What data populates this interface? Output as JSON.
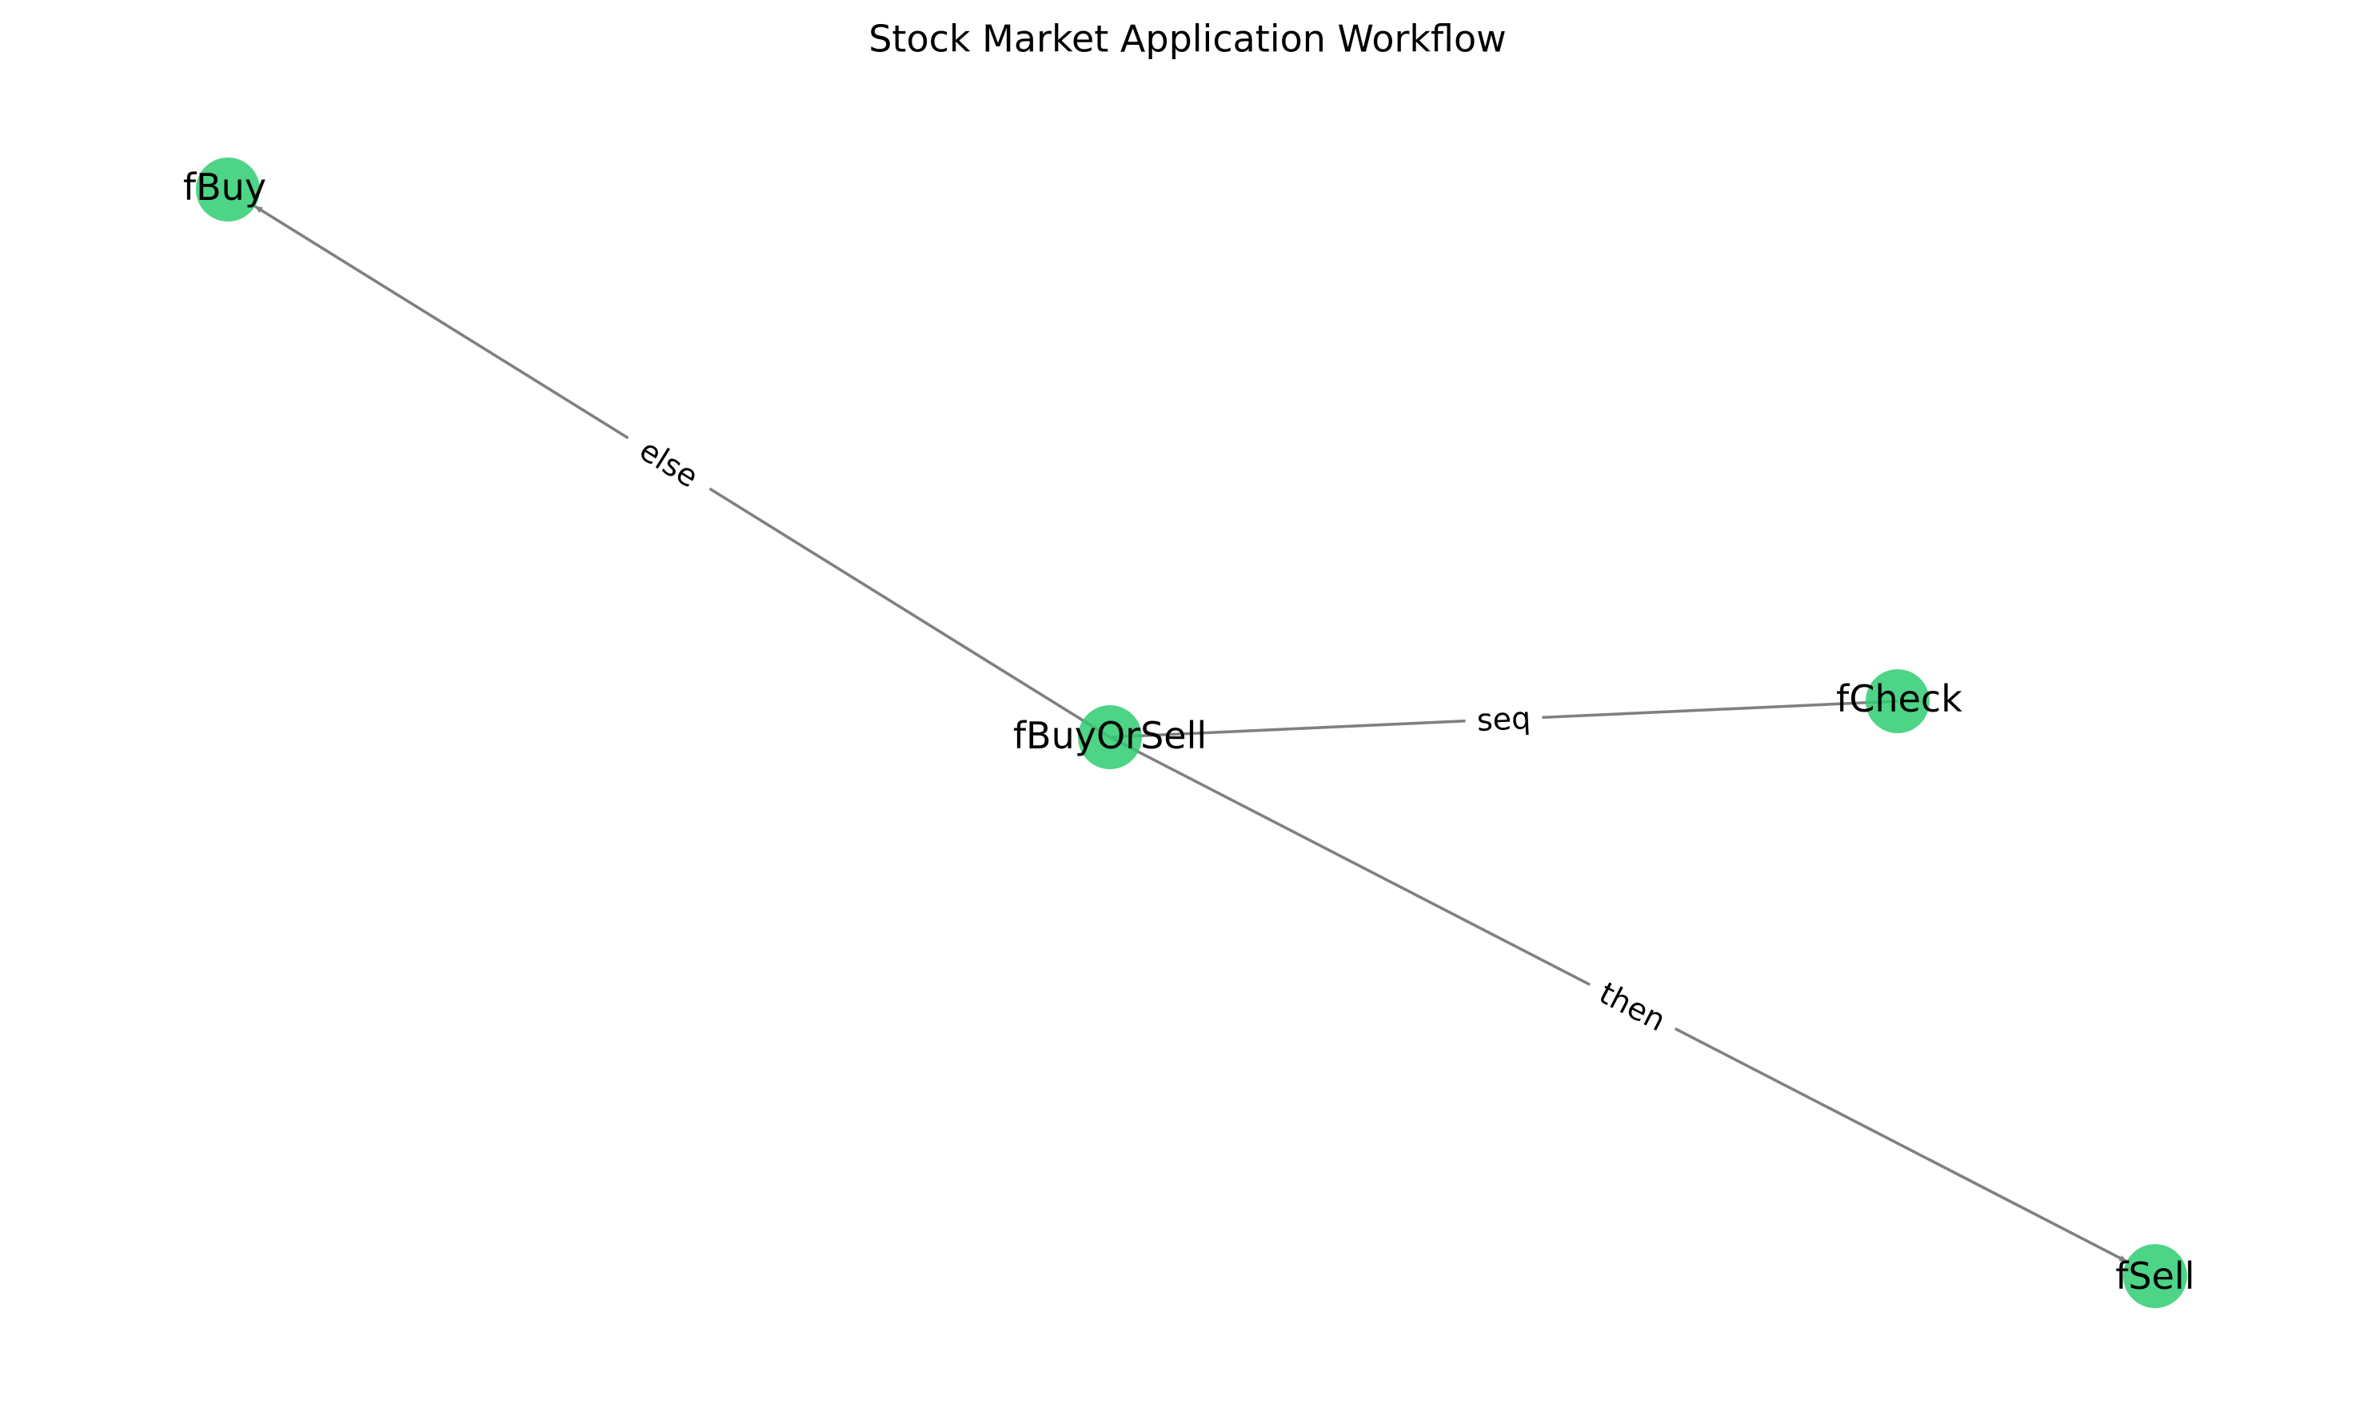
{
  "title": "Stock Market Application Workflow",
  "colors": {
    "node_fill": "#2ecc71",
    "edge_stroke": "#808080",
    "text": "#000000",
    "background": "#ffffff"
  },
  "nodes": [
    {
      "id": "fBuy",
      "label": "fBuy"
    },
    {
      "id": "fBuyOrSell",
      "label": "fBuyOrSell"
    },
    {
      "id": "fCheck",
      "label": "fCheck"
    },
    {
      "id": "fSell",
      "label": "fSell"
    }
  ],
  "edges": [
    {
      "from": "fBuyOrSell",
      "to": "fBuy",
      "label": "else",
      "arrow": true
    },
    {
      "from": "fBuyOrSell",
      "to": "fCheck",
      "label": "seq",
      "arrow": false
    },
    {
      "from": "fBuyOrSell",
      "to": "fSell",
      "label": "then",
      "arrow": true
    }
  ]
}
